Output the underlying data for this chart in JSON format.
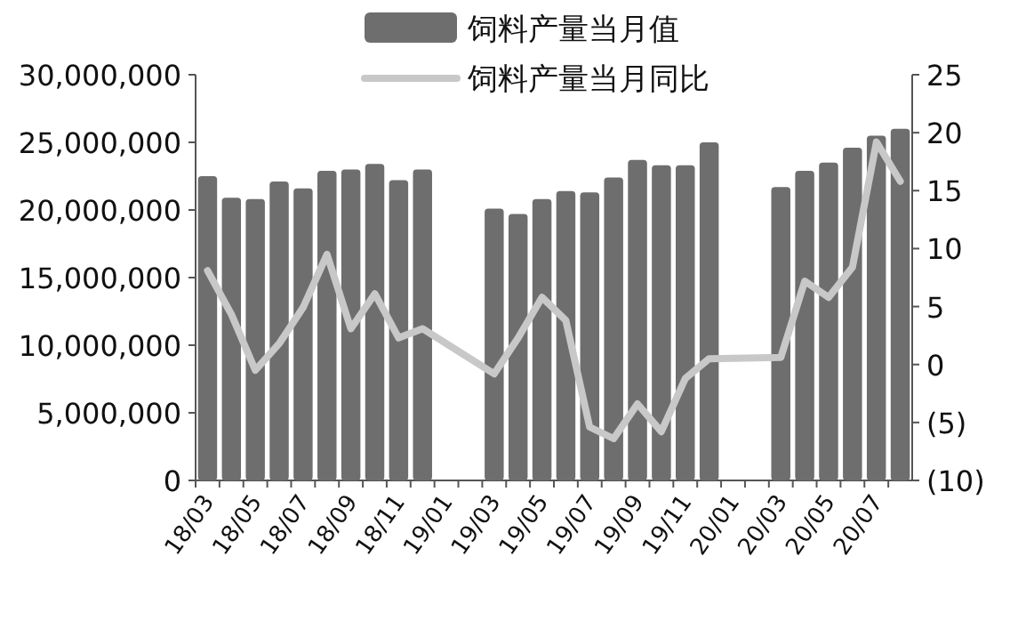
{
  "chart_data": {
    "type": "bar",
    "categories": [
      "18/03",
      null,
      "18/05",
      null,
      "18/07",
      null,
      "18/09",
      null,
      "18/11",
      null,
      "19/01",
      null,
      "19/03",
      null,
      "19/05",
      null,
      "19/07",
      null,
      "19/09",
      null,
      "19/11",
      null,
      "20/01",
      null,
      "20/03",
      null,
      "20/05",
      null,
      "20/07",
      null
    ],
    "series": [
      {
        "name": "饲料产量当月值",
        "color": "#6e6e6e",
        "values": [
          22500000,
          20900000,
          20800000,
          22100000,
          21600000,
          22900000,
          23000000,
          23400000,
          22200000,
          23000000,
          null,
          null,
          20100000,
          19700000,
          20800000,
          21400000,
          21300000,
          22400000,
          23700000,
          23300000,
          23300000,
          25000000,
          null,
          null,
          21700000,
          22900000,
          23500000,
          24600000,
          25500000,
          26000000
        ]
      },
      {
        "name": "饲料产量当月同比",
        "type": "line",
        "axis": "y2",
        "color": "#c8c8c8",
        "values": [
          8.1,
          4.3,
          -0.5,
          1.8,
          4.9,
          9.5,
          3.1,
          6.1,
          2.3,
          3.1,
          null,
          null,
          -0.8,
          2.3,
          5.8,
          3.8,
          -5.4,
          -6.4,
          -3.4,
          -5.8,
          -1.2,
          0.5,
          null,
          null,
          0.6,
          7.2,
          5.8,
          8.4,
          19.2,
          15.8
        ]
      }
    ],
    "ylim": [
      0,
      30000000
    ],
    "yticks": [
      0,
      {
        "value": 5000000,
        "label": "5,000,000"
      },
      {
        "value": 10000000,
        "label": "10,000,000"
      },
      {
        "value": 15000000,
        "label": "15,000,000"
      },
      {
        "value": 20000000,
        "label": "20,000,000"
      },
      {
        "value": 25000000,
        "label": "25,000,000"
      },
      {
        "value": 30000000,
        "label": "30,000,000"
      }
    ],
    "y2lim": [
      -10,
      25
    ],
    "y2ticks": [
      {
        "value": -10,
        "label": "(10)"
      },
      {
        "value": -5,
        "label": "(5)"
      },
      0,
      5,
      10,
      15,
      20,
      25
    ],
    "legend": "top",
    "grid": false
  }
}
